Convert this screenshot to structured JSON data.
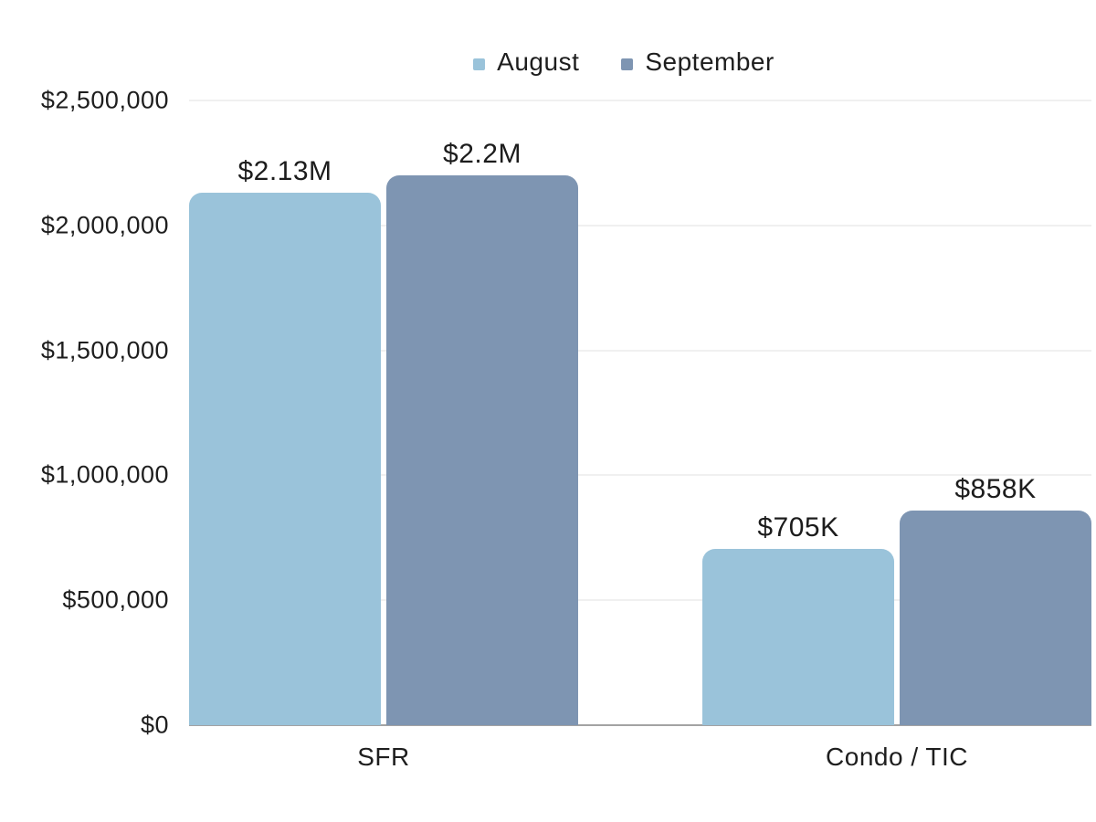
{
  "chart_data": {
    "type": "bar",
    "title": "",
    "xlabel": "",
    "ylabel": "",
    "categories": [
      "SFR",
      "Condo / TIC"
    ],
    "series": [
      {
        "name": "August",
        "color": "#9ac3da",
        "values": [
          2130000,
          705000
        ],
        "labels": [
          "$2.13M",
          "$705K"
        ]
      },
      {
        "name": "September",
        "color": "#7e95b2",
        "values": [
          2200000,
          858000
        ],
        "labels": [
          "$2.2M",
          "$858K"
        ]
      }
    ],
    "ylim": [
      0,
      2500000
    ],
    "yticks": [
      {
        "value": 0,
        "label": "$0"
      },
      {
        "value": 500000,
        "label": "$500,000"
      },
      {
        "value": 1000000,
        "label": "$1,000,000"
      },
      {
        "value": 1500000,
        "label": "$1,500,000"
      },
      {
        "value": 2000000,
        "label": "$2,000,000"
      },
      {
        "value": 2500000,
        "label": "$2,500,000"
      }
    ],
    "legend_position": "top",
    "grid": "horizontal"
  },
  "colors": {
    "text": "#1e1e1e",
    "gridline": "#e2e2e2",
    "baseline": "#a3a3a3",
    "background": "#ffffff"
  }
}
